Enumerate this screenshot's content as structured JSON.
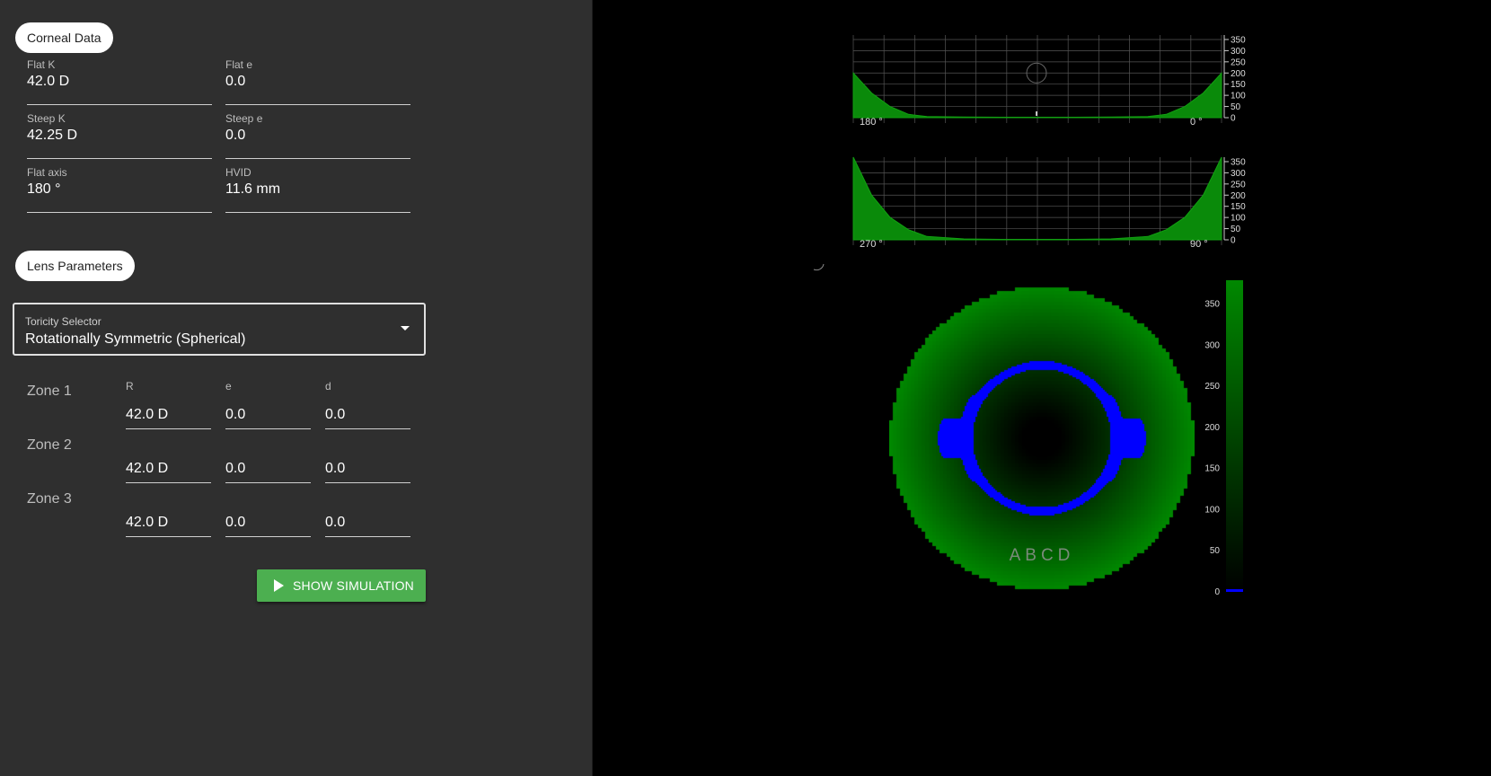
{
  "corneal": {
    "title": "Corneal Data",
    "fields": [
      {
        "label": "Flat K",
        "value": "42.0 D"
      },
      {
        "label": "Flat e",
        "value": "0.0"
      },
      {
        "label": "Steep K",
        "value": "42.25 D"
      },
      {
        "label": "Steep e",
        "value": "0.0"
      },
      {
        "label": "Flat axis",
        "value": "180 °"
      },
      {
        "label": "HVID",
        "value": "11.6 mm"
      }
    ]
  },
  "lens": {
    "title": "Lens Parameters",
    "toricity": {
      "label": "Toricity Selector",
      "value": "Rotationally Symmetric (Spherical)"
    },
    "columns": [
      "R",
      "e",
      "d"
    ],
    "zones": [
      {
        "name": "Zone 1",
        "R": "42.0 D",
        "e": "0.0",
        "d": "0.0"
      },
      {
        "name": "Zone 2",
        "R": "42.0 D",
        "e": "0.0",
        "d": "0.0"
      },
      {
        "name": "Zone 3",
        "R": "42.0 D",
        "e": "0.0",
        "d": "0.0"
      }
    ]
  },
  "simulation_button": {
    "label": "SHOW SIMULATION"
  },
  "profiles": [
    {
      "left_label": "180 °",
      "right_label": "0 °"
    },
    {
      "left_label": "270 °",
      "right_label": "90 °"
    }
  ],
  "map": {
    "engraving": "ABCD"
  },
  "colors": {
    "panel": "#2f2f2f",
    "accent": "#4caf50",
    "fluorescein": "#008800",
    "touch": "#0000ff"
  },
  "chart_data": [
    {
      "type": "area",
      "x_edges": [
        "180 °",
        "0 °"
      ],
      "x": [
        0,
        0.05,
        0.1,
        0.15,
        0.2,
        0.3,
        0.4,
        0.5,
        0.6,
        0.7,
        0.8,
        0.85,
        0.9,
        0.95,
        1
      ],
      "values": [
        200,
        110,
        50,
        15,
        5,
        3,
        2,
        2,
        2,
        3,
        5,
        15,
        50,
        110,
        200
      ],
      "ylim": [
        0,
        370
      ],
      "y_ticks": [
        0,
        50,
        100,
        150,
        200,
        250,
        300,
        350
      ]
    },
    {
      "type": "area",
      "x_edges": [
        "270 °",
        "90 °"
      ],
      "x": [
        0,
        0.05,
        0.1,
        0.15,
        0.2,
        0.3,
        0.4,
        0.5,
        0.6,
        0.7,
        0.8,
        0.85,
        0.9,
        0.95,
        1
      ],
      "values": [
        370,
        200,
        100,
        45,
        15,
        4,
        2,
        2,
        2,
        4,
        15,
        45,
        100,
        200,
        370
      ],
      "ylim": [
        0,
        370
      ],
      "y_ticks": [
        0,
        50,
        100,
        150,
        200,
        250,
        300,
        350
      ]
    },
    {
      "type": "heatmap",
      "colorbar_ticks": [
        0,
        50,
        100,
        150,
        200,
        250,
        300,
        350
      ],
      "colorbar_max": 380
    }
  ]
}
